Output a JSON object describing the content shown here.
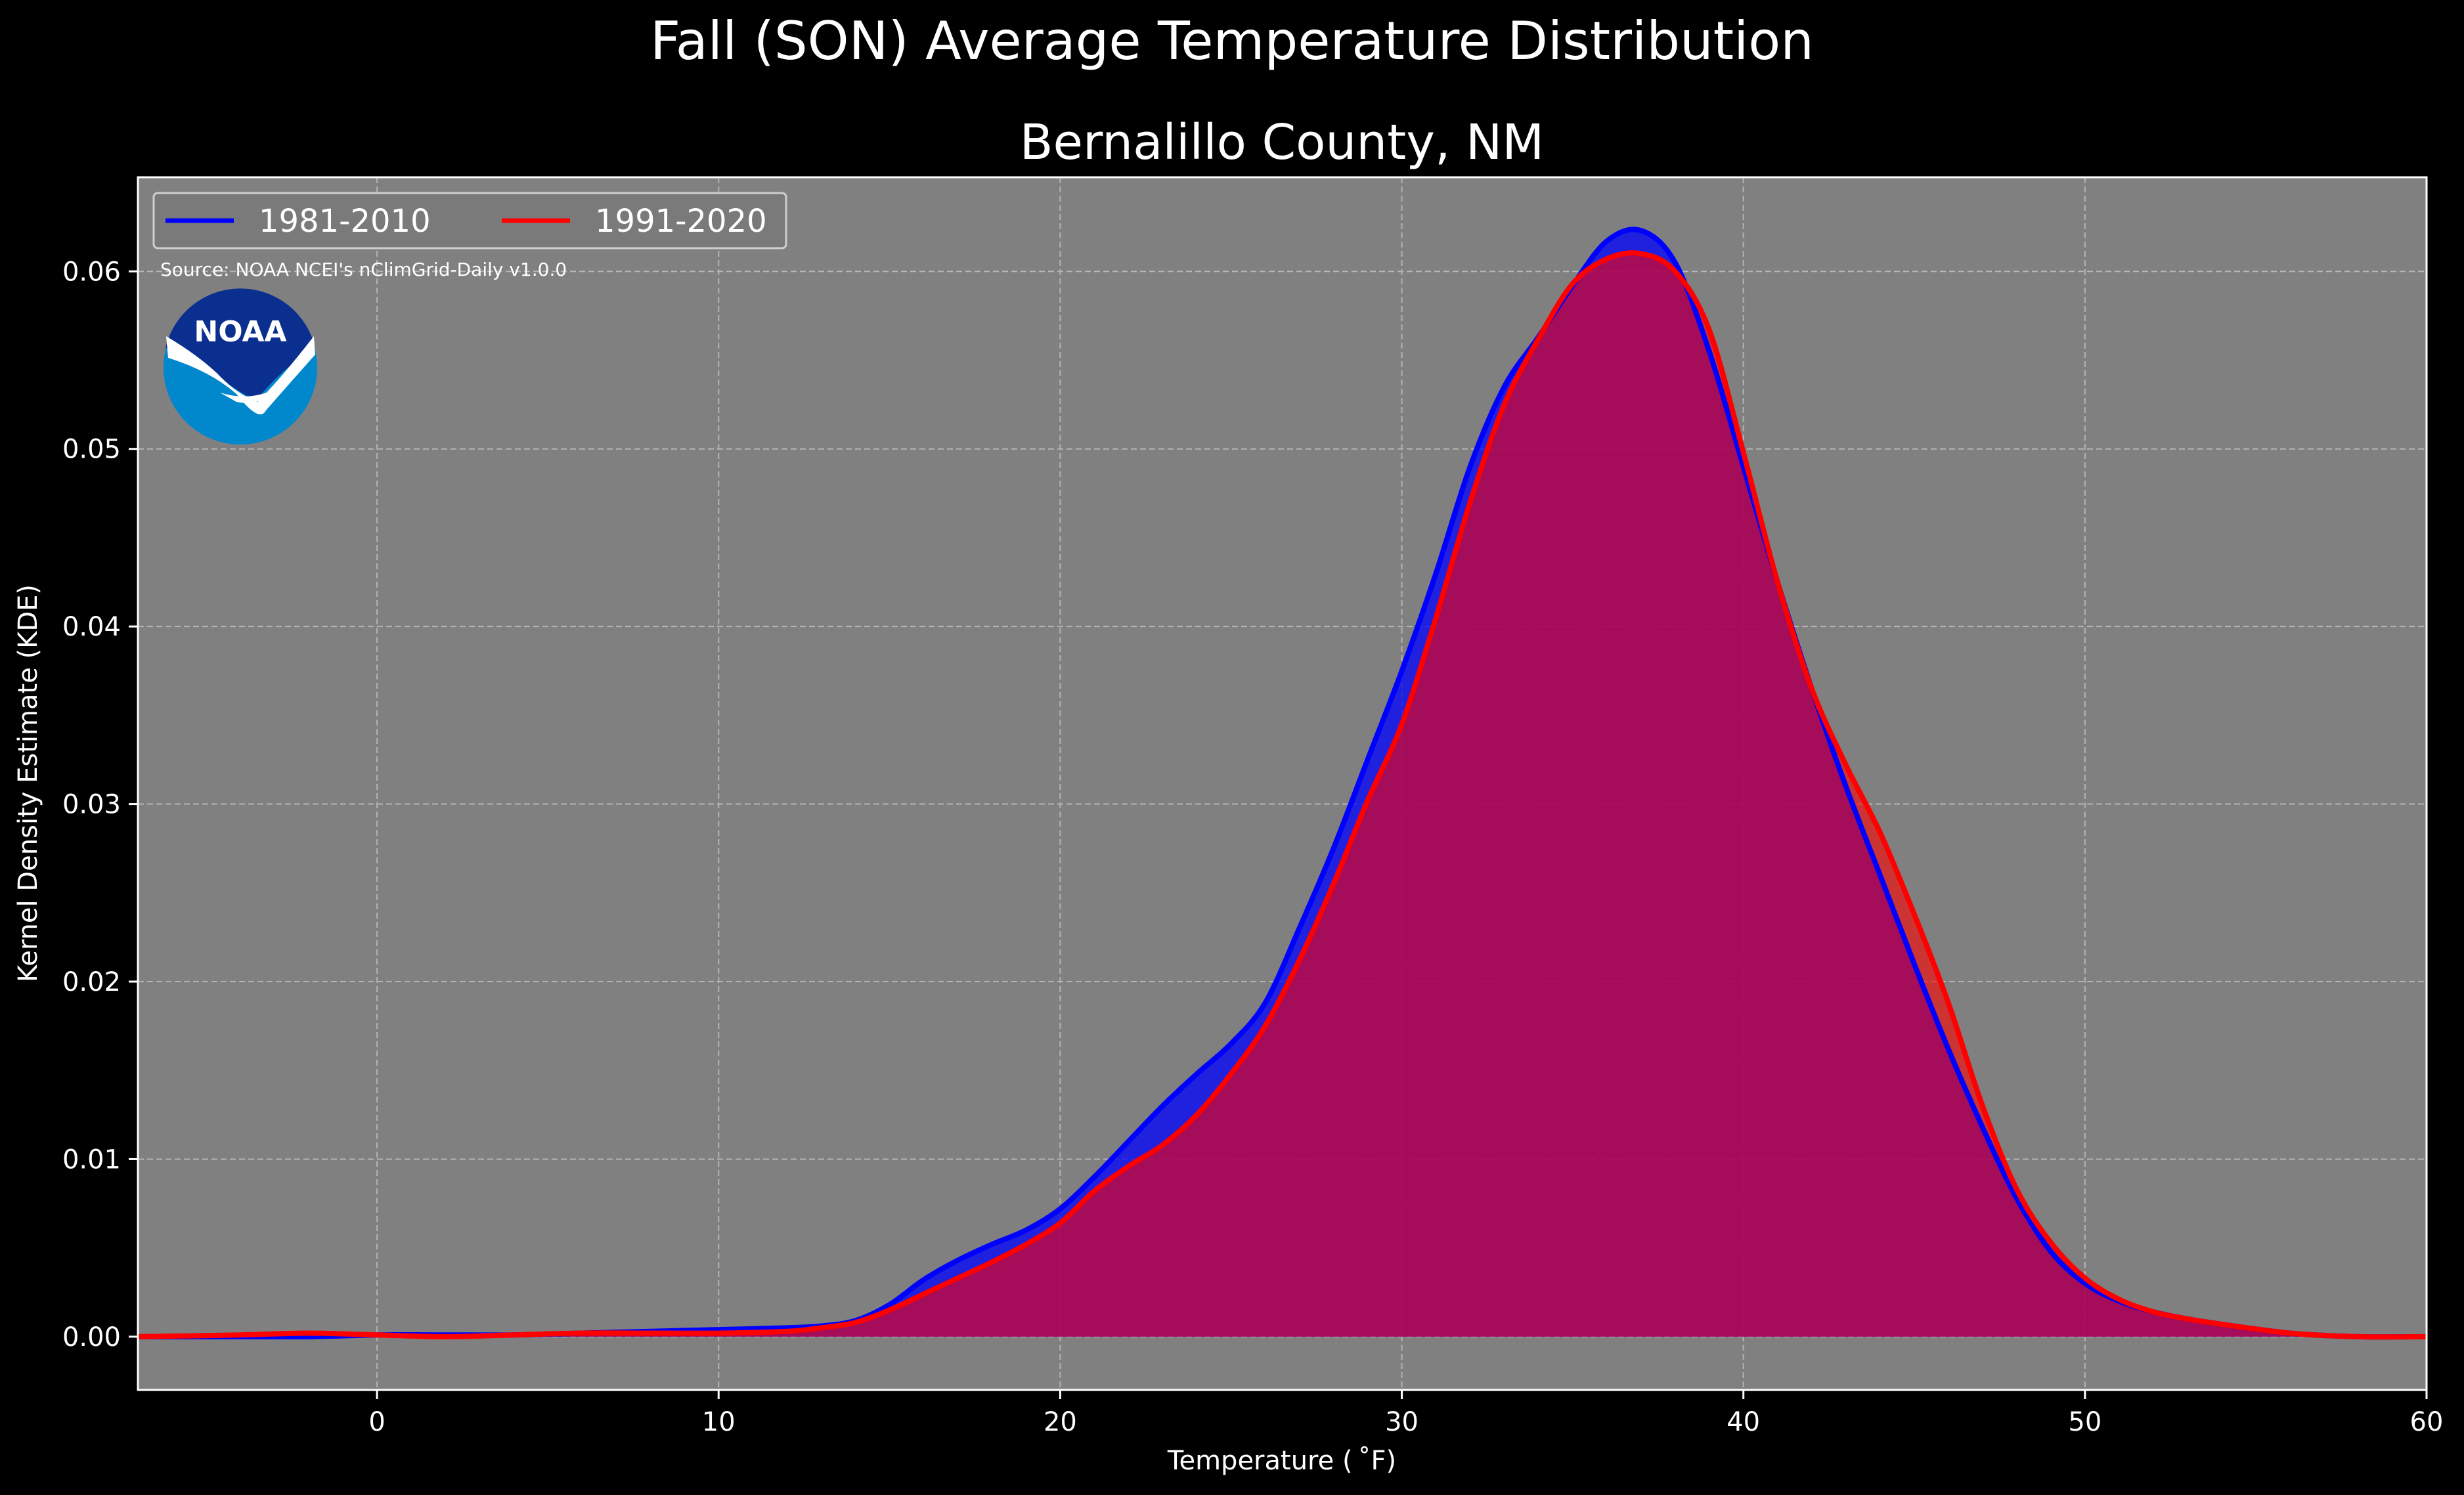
{
  "chart_data": {
    "type": "area",
    "suptitle": "Fall (SON) Average Temperature Distribution",
    "title": "Bernalillo County, NM",
    "xlabel": "Temperature ($^\\circ$F)",
    "xlabel_display": "Temperature ( ˚F)",
    "ylabel": "Kernel Density Estimate (KDE)",
    "xlim": [
      -7,
      60
    ],
    "ylim": [
      -0.003,
      0.0653
    ],
    "xticks": [
      0,
      10,
      20,
      30,
      40,
      50,
      60
    ],
    "yticks": [
      0.0,
      0.01,
      0.02,
      0.03,
      0.04,
      0.05,
      0.06
    ],
    "ytick_labels": [
      "0.00",
      "0.01",
      "0.02",
      "0.03",
      "0.04",
      "0.05",
      "0.06"
    ],
    "grid": true,
    "legend_position": "top-left",
    "annotation": "Source: NOAA NCEI's nClimGrid-Daily v1.0.0",
    "logo_text": "NOAA",
    "x": [
      -7,
      -4,
      -2,
      0,
      2,
      4,
      6,
      8,
      10,
      12,
      13,
      14,
      15,
      16,
      17,
      18,
      19,
      20,
      21,
      22,
      23,
      24,
      25,
      26,
      27,
      28,
      29,
      30,
      31,
      32,
      33,
      34,
      35,
      36,
      37,
      38,
      39,
      40,
      41,
      42,
      43,
      44,
      45,
      46,
      47,
      48,
      49,
      50,
      51,
      52,
      53,
      54,
      56,
      58,
      60
    ],
    "series": [
      {
        "name": "1981-2010",
        "color": "#0000ff",
        "values": [
          0,
          0,
          0,
          0.0001,
          0.0001,
          0.0001,
          0.0002,
          0.0003,
          0.0004,
          0.0005,
          0.0006,
          0.0009,
          0.0018,
          0.0032,
          0.0043,
          0.0052,
          0.006,
          0.0072,
          0.009,
          0.011,
          0.013,
          0.0148,
          0.0165,
          0.0188,
          0.023,
          0.0275,
          0.0325,
          0.0375,
          0.043,
          0.049,
          0.0535,
          0.0563,
          0.0592,
          0.0617,
          0.0623,
          0.0605,
          0.0555,
          0.049,
          0.0425,
          0.0365,
          0.031,
          0.026,
          0.021,
          0.0162,
          0.0118,
          0.0078,
          0.0048,
          0.003,
          0.002,
          0.0014,
          0.001,
          0.0007,
          0.0002,
          0,
          0
        ]
      },
      {
        "name": "1991-2020",
        "color": "#ff0000",
        "values": [
          0,
          0.0001,
          0.0002,
          0.0001,
          0,
          0.0001,
          0.0002,
          0.0002,
          0.0002,
          0.0003,
          0.0005,
          0.0008,
          0.0015,
          0.0024,
          0.0033,
          0.0042,
          0.0052,
          0.0064,
          0.0082,
          0.0096,
          0.0108,
          0.0125,
          0.0148,
          0.0175,
          0.0212,
          0.0255,
          0.0302,
          0.0345,
          0.0405,
          0.047,
          0.0525,
          0.0562,
          0.0593,
          0.0607,
          0.061,
          0.06,
          0.0567,
          0.0498,
          0.0425,
          0.0365,
          0.0322,
          0.0284,
          0.0238,
          0.0188,
          0.013,
          0.0083,
          0.0053,
          0.0033,
          0.0021,
          0.0014,
          0.001,
          0.0007,
          0.0002,
          0,
          0
        ]
      }
    ]
  }
}
